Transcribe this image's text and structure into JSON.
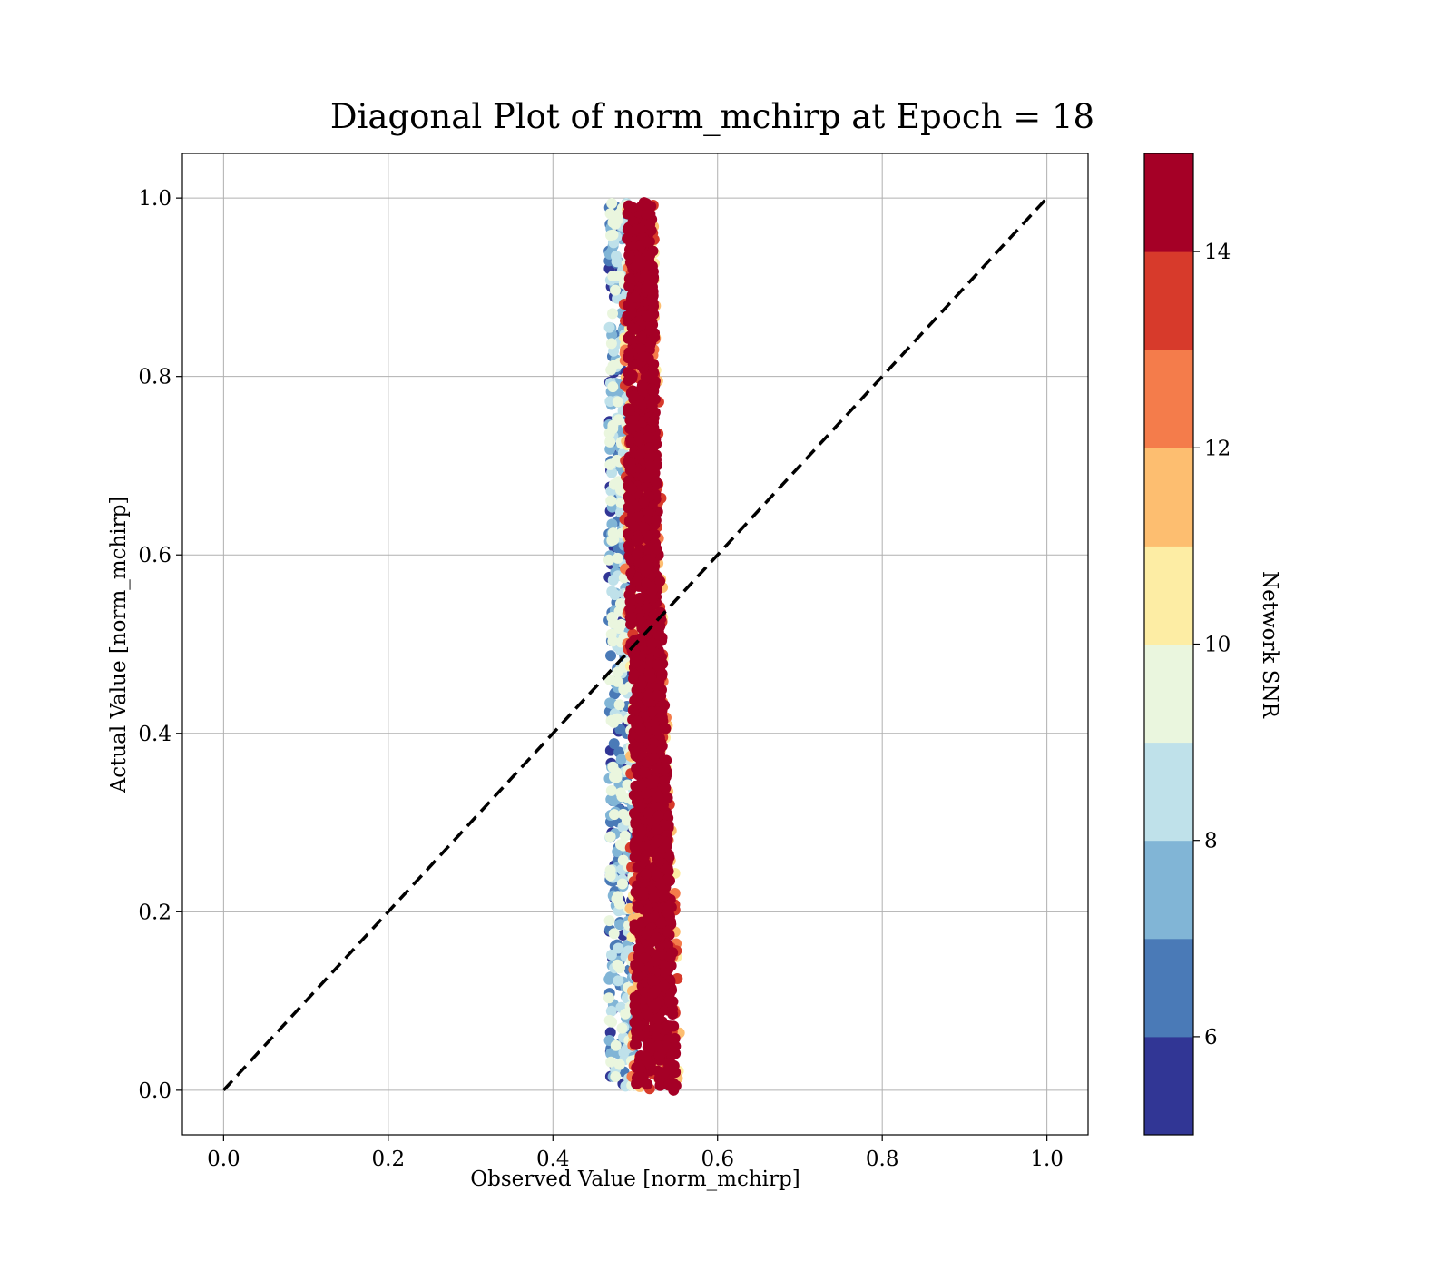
{
  "chart_data": {
    "type": "scatter",
    "title": "Diagonal Plot of norm_mchirp at Epoch = 18",
    "xlabel": "Observed Value [norm_mchirp]",
    "ylabel": "Actual Value [norm_mchirp]",
    "xlim": [
      -0.05,
      1.05
    ],
    "ylim": [
      -0.05,
      1.05
    ],
    "xticks": [
      "0.0",
      "0.2",
      "0.4",
      "0.6",
      "0.8",
      "1.0"
    ],
    "yticks": [
      "0.0",
      "0.2",
      "0.4",
      "0.6",
      "0.8",
      "1.0"
    ],
    "grid": true,
    "reference_line": {
      "style": "dashed",
      "color": "#000000",
      "from": [
        0,
        0
      ],
      "to": [
        1,
        1
      ]
    },
    "colorbar": {
      "label": "Network SNR",
      "range": [
        5,
        15
      ],
      "ticks": [
        "6",
        "8",
        "10",
        "12",
        "14"
      ],
      "tick_values": [
        6,
        8,
        10,
        12,
        14
      ],
      "colormap": "RdYlBu_r",
      "levels": [
        {
          "from": 5,
          "to": 6,
          "color": "#313695"
        },
        {
          "from": 6,
          "to": 7,
          "color": "#4a7ab7"
        },
        {
          "from": 7,
          "to": 8,
          "color": "#81b5d6"
        },
        {
          "from": 8,
          "to": 9,
          "color": "#bfe1ea"
        },
        {
          "from": 9,
          "to": 10,
          "color": "#eaf6de"
        },
        {
          "from": 10,
          "to": 11,
          "color": "#fdeda4"
        },
        {
          "from": 11,
          "to": 12,
          "color": "#fdbe70"
        },
        {
          "from": 12,
          "to": 13,
          "color": "#f47c4b"
        },
        {
          "from": 13,
          "to": 14,
          "color": "#d73a2b"
        },
        {
          "from": 14,
          "to": 15,
          "color": "#a50026"
        }
      ]
    },
    "scatter_profile": {
      "description_of_band": "predicted values concentrated near 0.47-0.57 for all actual values",
      "y_range": [
        0.0,
        0.995
      ],
      "center_line": [
        [
          0.0,
          0.525
        ],
        [
          0.3,
          0.52
        ],
        [
          0.6,
          0.51
        ],
        [
          1.0,
          0.505
        ]
      ],
      "half_width": [
        [
          0.0,
          0.03
        ],
        [
          0.3,
          0.025
        ],
        [
          0.6,
          0.022
        ],
        [
          1.0,
          0.018
        ]
      ],
      "low_snr_edge_x": 0.468,
      "n_points": 2600
    }
  }
}
